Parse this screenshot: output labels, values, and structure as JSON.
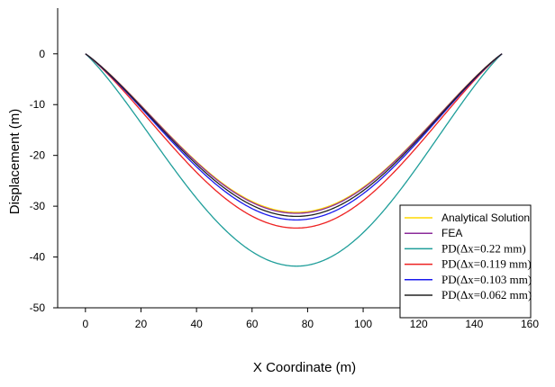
{
  "chart_data": {
    "type": "line",
    "title": "",
    "xlabel": "X Coordinate (m)",
    "ylabel": "Displacement (m)",
    "xlim": [
      -10,
      160
    ],
    "ylim": [
      -50,
      9
    ],
    "xticks": [
      0,
      20,
      40,
      60,
      80,
      100,
      120,
      140,
      160
    ],
    "yticks": [
      0,
      -10,
      -20,
      -30,
      -40,
      -50
    ],
    "grid": false,
    "legend_position": "bottom-right",
    "span": [
      0,
      150
    ],
    "peak_x": 76,
    "series": [
      {
        "name": "Analytical Solution",
        "color": "#ffd800",
        "min_y": -31.2,
        "font": "sans"
      },
      {
        "name": "FEA",
        "color": "#8b2b9a",
        "min_y": -31.4,
        "font": "sans"
      },
      {
        "name": "PD(Δx=0.22 mm)",
        "color": "#1f9e9a",
        "min_y": -41.8,
        "font": "serif"
      },
      {
        "name": "PD(Δx=0.119 mm)",
        "color": "#ee2222",
        "min_y": -34.3,
        "font": "serif"
      },
      {
        "name": "PD(Δx=0.103 mm)",
        "color": "#1a1aee",
        "min_y": -32.7,
        "font": "serif"
      },
      {
        "name": "PD(Δx=0.062 mm)",
        "color": "#222222",
        "min_y": -32.0,
        "font": "serif"
      }
    ]
  }
}
